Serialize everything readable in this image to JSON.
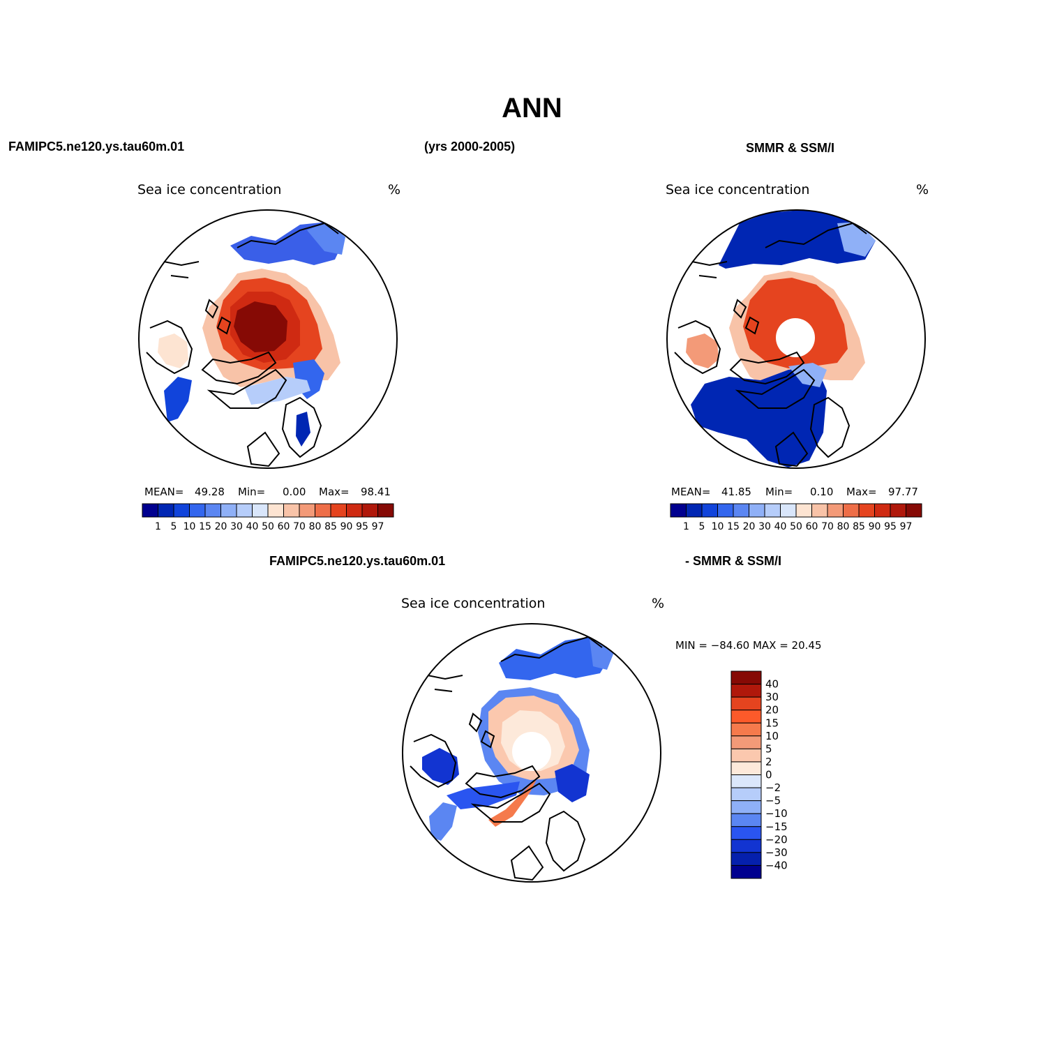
{
  "figure": {
    "title": "ANN",
    "run_label": "FAMIPC5.ne120.ys.tau60m.01",
    "years_label": "(yrs 2000-2005)",
    "obs_label": "SMMR & SSM/I",
    "diff_run_label": "FAMIPC5.ne120.ys.tau60m.01",
    "diff_obs_label": "- SMMR & SSM/I"
  },
  "panels": {
    "model": {
      "variable": "Sea ice concentration",
      "units": "%",
      "mean_label": "MEAN=",
      "mean": "49.28",
      "min_label": "Min=",
      "min": "0.00",
      "max_label": "Max=",
      "max": "98.41"
    },
    "obs": {
      "variable": "Sea ice concentration",
      "units": "%",
      "mean_label": "MEAN=",
      "mean": "41.85",
      "min_label": "Min=",
      "min": "0.10",
      "max_label": "Max=",
      "max": "97.77"
    },
    "diff": {
      "variable": "Sea ice concentration",
      "units": "%",
      "minmax_text": "MIN = −84.60  MAX =    20.45"
    }
  },
  "colorbars": {
    "concentration": {
      "labels": [
        "1",
        "5",
        "10",
        "15",
        "20",
        "30",
        "40",
        "50",
        "60",
        "70",
        "80",
        "85",
        "90",
        "95",
        "97"
      ],
      "colors": [
        "#00008f",
        "#0026b3",
        "#1144db",
        "#3366ee",
        "#5b86f2",
        "#8fb0f7",
        "#b6cdfa",
        "#d9e6fb",
        "#fde4d2",
        "#f8c3a8",
        "#f39a78",
        "#ee6e48",
        "#e5441f",
        "#cf2a12",
        "#b0180b",
        "#860a05"
      ]
    },
    "difference": {
      "labels": [
        "40",
        "30",
        "20",
        "15",
        "10",
        "5",
        "2",
        "0",
        "−2",
        "−5",
        "−10",
        "−15",
        "−20",
        "−30",
        "−40"
      ],
      "colors": [
        "#860a05",
        "#b0180b",
        "#e5441f",
        "#fc5a2a",
        "#f57a4c",
        "#f39a78",
        "#fbc8ae",
        "#fde9da",
        "#dbe7fb",
        "#b6cdfa",
        "#8fb0f7",
        "#5b86f2",
        "#2a55f0",
        "#1234d1",
        "#0520ad",
        "#00008f"
      ]
    }
  }
}
